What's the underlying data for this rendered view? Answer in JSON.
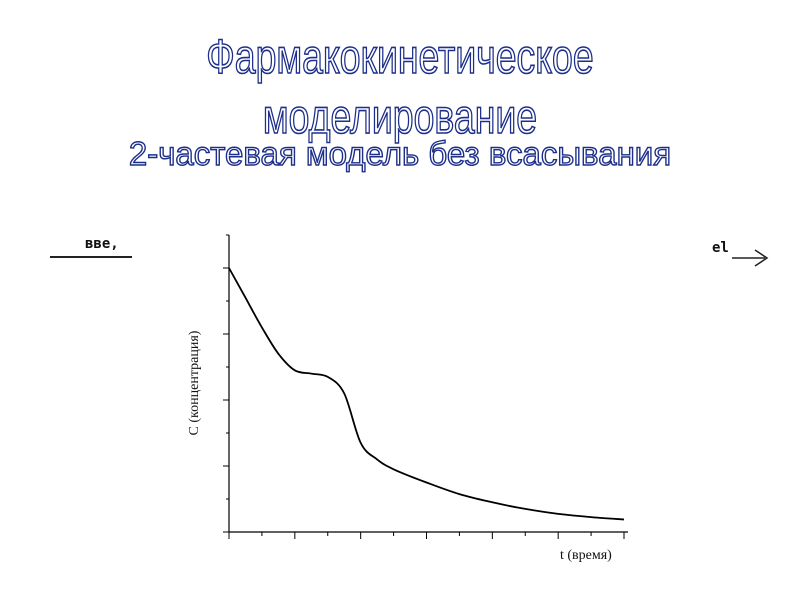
{
  "slide": {
    "title": "Фармакокинетическое моделирование",
    "subtitle": "2-частевая модель без всасывания",
    "fragment_left": "вве,",
    "fragment_right": "el"
  },
  "chart_data": {
    "type": "line",
    "title": "",
    "xlabel": "t (время)",
    "ylabel": "С (концентрация)",
    "xlim": [
      0,
      12
    ],
    "ylim": [
      0,
      9
    ],
    "grid": false,
    "series": [
      {
        "x": [
          0,
          0.5,
          1,
          1.5,
          2,
          2.5,
          3,
          3.5,
          4,
          4.5,
          5,
          6,
          7,
          8,
          9,
          10,
          11,
          12
        ],
        "values": [
          8.0,
          7.1,
          6.2,
          5.4,
          4.9,
          4.8,
          4.7,
          4.2,
          2.7,
          2.2,
          1.9,
          1.5,
          1.15,
          0.9,
          0.7,
          0.55,
          0.45,
          0.38
        ]
      }
    ]
  },
  "colors": {
    "title_outline": "#1d2f8a",
    "title_fill": "#ffffff",
    "line": "#000000"
  }
}
